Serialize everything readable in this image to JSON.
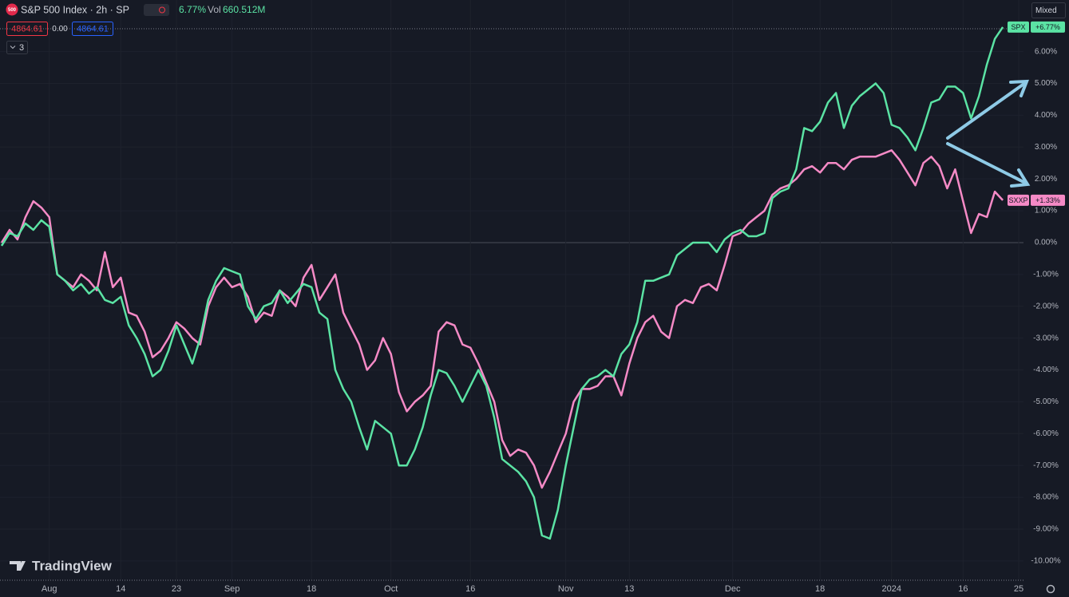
{
  "toolbar": {
    "icon_text": "500",
    "symbol": "S&P 500 Index · 2h · SP",
    "change": "6.77%",
    "volume_label": "Vol",
    "volume": "660.512M",
    "bid": "4864.61",
    "spread": "0.00",
    "ask": "4864.61",
    "indicators_count": "3",
    "scale_mode": "Mixed",
    "watermark": "TradingView"
  },
  "chart_data": {
    "type": "line",
    "categories": [
      null,
      null,
      null,
      null,
      null,
      null,
      "Aug",
      null,
      null,
      null,
      null,
      null,
      null,
      null,
      null,
      "14",
      null,
      null,
      null,
      null,
      null,
      null,
      "23",
      null,
      null,
      null,
      null,
      null,
      null,
      "Sep",
      null,
      null,
      null,
      null,
      null,
      null,
      null,
      null,
      null,
      "18",
      null,
      null,
      null,
      null,
      null,
      null,
      null,
      null,
      null,
      "Oct",
      null,
      null,
      null,
      null,
      null,
      null,
      null,
      null,
      null,
      "16",
      null,
      null,
      null,
      null,
      null,
      null,
      null,
      null,
      null,
      null,
      null,
      "Nov",
      null,
      null,
      null,
      null,
      null,
      null,
      null,
      "13",
      null,
      null,
      null,
      null,
      null,
      null,
      null,
      null,
      null,
      null,
      null,
      null,
      "Dec",
      null,
      null,
      null,
      null,
      null,
      null,
      null,
      null,
      null,
      null,
      "18",
      null,
      null,
      null,
      null,
      null,
      null,
      null,
      null,
      "2024",
      null,
      null,
      null,
      null,
      null,
      null,
      null,
      null,
      "16",
      null,
      null,
      null,
      null,
      null,
      null,
      "25"
    ],
    "series": [
      {
        "name": "SPX",
        "color": "#5be3a4",
        "end_label": "+6.77%",
        "values": [
          -0.1,
          0.3,
          0.2,
          0.6,
          0.4,
          0.7,
          0.5,
          -1.0,
          -1.2,
          -1.5,
          -1.3,
          -1.6,
          -1.4,
          -1.8,
          -1.9,
          -1.7,
          -2.6,
          -3.0,
          -3.5,
          -4.2,
          -4.0,
          -3.4,
          -2.6,
          -3.2,
          -3.8,
          -3.0,
          -1.8,
          -1.2,
          -0.8,
          -0.9,
          -1.0,
          -2.0,
          -2.4,
          -2.0,
          -1.9,
          -1.5,
          -1.9,
          -1.6,
          -1.3,
          -1.4,
          -2.2,
          -2.4,
          -4.0,
          -4.6,
          -5.0,
          -5.8,
          -6.5,
          -5.6,
          -5.8,
          -6.0,
          -7.0,
          -7.0,
          -6.5,
          -5.8,
          -4.8,
          -4.0,
          -4.1,
          -4.5,
          -5.0,
          -4.5,
          -4.0,
          -4.5,
          -5.5,
          -6.8,
          -7.0,
          -7.2,
          -7.5,
          -8.0,
          -9.2,
          -9.3,
          -8.4,
          -7.0,
          -5.8,
          -4.6,
          -4.3,
          -4.2,
          -4.0,
          -4.2,
          -3.5,
          -3.2,
          -2.5,
          -1.2,
          -1.2,
          -1.1,
          -1.0,
          -0.4,
          -0.2,
          0.0,
          0.0,
          0.0,
          -0.3,
          0.1,
          0.3,
          0.4,
          0.2,
          0.2,
          0.3,
          1.4,
          1.6,
          1.7,
          2.3,
          3.6,
          3.5,
          3.8,
          4.4,
          4.7,
          3.6,
          4.3,
          4.6,
          4.8,
          5.0,
          4.7,
          3.7,
          3.6,
          3.3,
          2.9,
          3.6,
          4.4,
          4.5,
          4.9,
          4.9,
          4.7,
          3.9,
          4.6,
          5.6,
          6.4,
          6.77,
          null,
          null
        ]
      },
      {
        "name": "SXXP",
        "color": "#f58ac6",
        "end_label": "+1.33%",
        "values": [
          0.0,
          0.4,
          0.1,
          0.8,
          1.3,
          1.1,
          0.8,
          -1.0,
          -1.2,
          -1.4,
          -1.0,
          -1.2,
          -1.5,
          -0.3,
          -1.4,
          -1.1,
          -2.2,
          -2.3,
          -2.8,
          -3.6,
          -3.4,
          -3.0,
          -2.5,
          -2.7,
          -3.0,
          -3.2,
          -2.0,
          -1.4,
          -1.1,
          -1.4,
          -1.3,
          -1.7,
          -2.5,
          -2.2,
          -2.3,
          -1.5,
          -1.7,
          -2.0,
          -1.1,
          -0.7,
          -1.8,
          -1.4,
          -1.0,
          -2.2,
          -2.7,
          -3.2,
          -4.0,
          -3.7,
          -3.0,
          -3.5,
          -4.7,
          -5.3,
          -5.0,
          -4.8,
          -4.5,
          -2.8,
          -2.5,
          -2.6,
          -3.2,
          -3.3,
          -3.8,
          -4.4,
          -5.0,
          -6.2,
          -6.7,
          -6.5,
          -6.6,
          -7.0,
          -7.7,
          -7.2,
          -6.6,
          -6.0,
          -5.0,
          -4.6,
          -4.6,
          -4.5,
          -4.2,
          -4.2,
          -4.8,
          -3.8,
          -3.0,
          -2.5,
          -2.3,
          -2.8,
          -3.0,
          -2.0,
          -1.8,
          -1.9,
          -1.4,
          -1.3,
          -1.5,
          -0.7,
          0.2,
          0.3,
          0.6,
          0.8,
          1.0,
          1.5,
          1.7,
          1.8,
          2.0,
          2.3,
          2.4,
          2.2,
          2.5,
          2.5,
          2.3,
          2.6,
          2.7,
          2.7,
          2.7,
          2.8,
          2.9,
          2.6,
          2.2,
          1.8,
          2.5,
          2.7,
          2.4,
          1.7,
          2.3,
          1.3,
          0.3,
          0.9,
          0.8,
          1.6,
          1.33,
          null,
          null
        ]
      }
    ],
    "ylim": [
      -10.43,
      7.62
    ],
    "yticks": [
      {
        "value": -10,
        "label": "-10.00%"
      },
      {
        "value": -9,
        "label": "-9.00%"
      },
      {
        "value": -8,
        "label": "-8.00%"
      },
      {
        "value": -7,
        "label": "-7.00%"
      },
      {
        "value": -6,
        "label": "-6.00%"
      },
      {
        "value": -5,
        "label": "-5.00%"
      },
      {
        "value": -4,
        "label": "-4.00%"
      },
      {
        "value": -3,
        "label": "-3.00%"
      },
      {
        "value": -2,
        "label": "-2.00%"
      },
      {
        "value": -1,
        "label": "-1.00%"
      },
      {
        "value": 0,
        "label": "0.00%"
      },
      {
        "value": 1,
        "label": "1.00%"
      },
      {
        "value": 2,
        "label": "2.00%"
      },
      {
        "value": 3,
        "label": "3.00%"
      },
      {
        "value": 4,
        "label": "4.00%"
      },
      {
        "value": 5,
        "label": "5.00%"
      },
      {
        "value": 6,
        "label": "6.00%"
      }
    ],
    "grid": true
  }
}
